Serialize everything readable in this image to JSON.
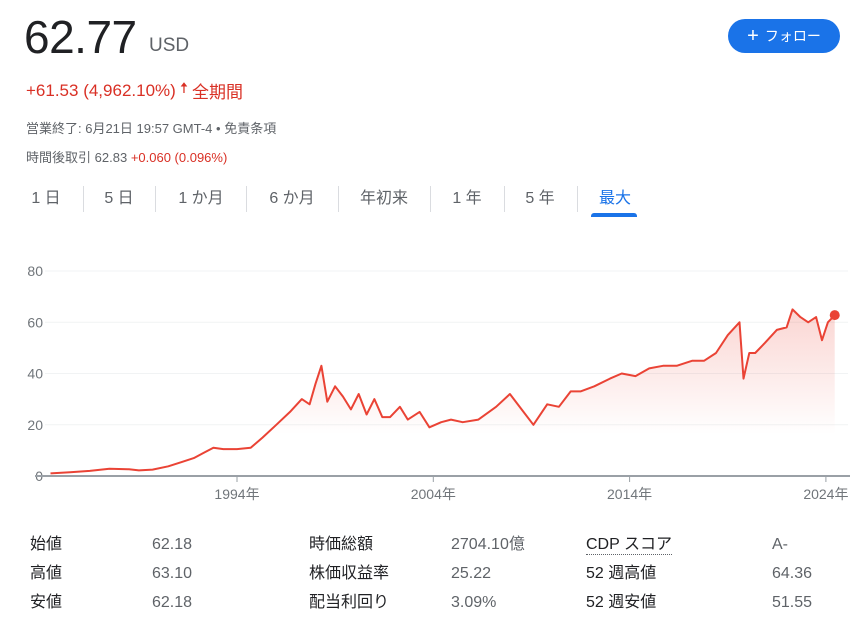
{
  "header": {
    "price": "62.77",
    "currency": "USD",
    "follow_label": "フォロー",
    "follow_icon": "plus-icon",
    "change": "+61.53 (4,962.10%)",
    "change_icon": "arrow-up-icon",
    "change_period": "全期間",
    "status_text": "営業終了: 6月21日 19:57 GMT-4 •",
    "disclaimer_link": "免責条項",
    "after_hours_label": "時間後取引",
    "after_hours_price": "62.83",
    "after_hours_change": "+0.060 (0.096%)",
    "accent_color": "#1a73e8",
    "negative_color": "#d93025"
  },
  "tabs": [
    {
      "label": "1 日",
      "active": false
    },
    {
      "label": "5 日",
      "active": false
    },
    {
      "label": "1 か月",
      "active": false
    },
    {
      "label": "6 か月",
      "active": false
    },
    {
      "label": "年初来",
      "active": false
    },
    {
      "label": "1 年",
      "active": false
    },
    {
      "label": "5 年",
      "active": false
    },
    {
      "label": "最大",
      "active": true
    }
  ],
  "chart_data": {
    "type": "area",
    "line_color": "#ea4335",
    "ylim": [
      0,
      80
    ],
    "yticks": [
      "0",
      "20",
      "40",
      "60",
      "80"
    ],
    "xticks": [
      {
        "year": 1994,
        "label": "1994年"
      },
      {
        "year": 2004,
        "label": "2004年"
      },
      {
        "year": 2014,
        "label": "2014年"
      },
      {
        "year": 2024,
        "label": "2024年"
      }
    ],
    "grid": true,
    "series": [
      {
        "x": [
          1984.5,
          1985.5,
          1986.5,
          1987.5,
          1988.5,
          1989,
          1989.7,
          1990.5,
          1991.2,
          1991.8,
          1992.3,
          1992.8,
          1993.3,
          1994,
          1994.7,
          1995.3,
          1996,
          1996.7,
          1997.3,
          1997.7,
          1998,
          1998.3,
          1998.6,
          1999,
          1999.4,
          1999.8,
          2000.2,
          2000.6,
          2001,
          2001.4,
          2001.8,
          2002.3,
          2002.7,
          2003.3,
          2003.8,
          2004.4,
          2004.9,
          2005.5,
          2006.3,
          2007.2,
          2007.9,
          2008.5,
          2009.1,
          2009.8,
          2010.4,
          2011,
          2011.5,
          2012.2,
          2013,
          2013.6,
          2014.3,
          2015,
          2015.7,
          2016.4,
          2017.2,
          2017.8,
          2018.4,
          2019,
          2019.6,
          2019.8,
          2020.1,
          2020.4,
          2020.9,
          2021.5,
          2022,
          2022.3,
          2022.7,
          2023.1,
          2023.5,
          2023.8,
          2024.1,
          2024.45
        ],
        "y": [
          1,
          1.5,
          2,
          2.8,
          2.6,
          2.2,
          2.5,
          3.8,
          5.5,
          7,
          9,
          11,
          10.5,
          10.5,
          11,
          15,
          20,
          25,
          30,
          28,
          36,
          43,
          29,
          35,
          31,
          26,
          32,
          24,
          30,
          23,
          23,
          27,
          22,
          25,
          19,
          21,
          22,
          21,
          22,
          27,
          32,
          26,
          20,
          28,
          27,
          33,
          33,
          35,
          38,
          40,
          39,
          42,
          43,
          43,
          45,
          45,
          48,
          55,
          60,
          38,
          48,
          48,
          52,
          57,
          58,
          65,
          62,
          60,
          62,
          53,
          60,
          62.77
        ]
      }
    ]
  },
  "stats": [
    [
      {
        "label": "始値",
        "value": "62.18"
      },
      {
        "label": "時価総額",
        "value": "2704.10億"
      },
      {
        "label": "CDP スコア",
        "value": "A-"
      }
    ],
    [
      {
        "label": "高値",
        "value": "63.10"
      },
      {
        "label": "株価収益率",
        "value": "25.22"
      },
      {
        "label": "52 週高値",
        "value": "64.36"
      }
    ],
    [
      {
        "label": "安値",
        "value": "62.18"
      },
      {
        "label": "配当利回り",
        "value": "3.09%"
      },
      {
        "label": "52 週安値",
        "value": "51.55"
      }
    ]
  ]
}
